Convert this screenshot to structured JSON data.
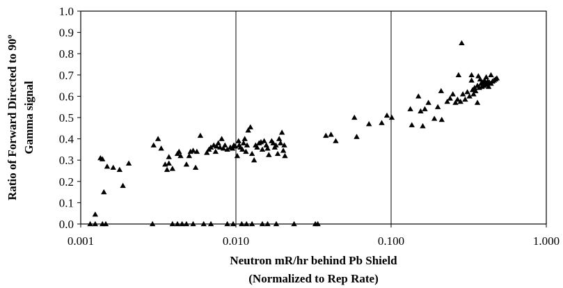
{
  "chart_data": {
    "type": "scatter",
    "title": "",
    "xlabel_lines": [
      "Neutron mR/hr behind Pb Shield",
      "(Normalized to Rep Rate)"
    ],
    "ylabel_lines": [
      "Ratio of Forward Directed to 90º",
      "Gamma signal"
    ],
    "x_scale": "log",
    "xlim": [
      0.001,
      1.0
    ],
    "ylim": [
      0.0,
      1.0
    ],
    "x_ticks": [
      "0.001",
      "0.010",
      "0.100",
      "1.000"
    ],
    "y_ticks": [
      "0.0",
      "0.1",
      "0.2",
      "0.3",
      "0.4",
      "0.5",
      "0.6",
      "0.7",
      "0.8",
      "0.9",
      "1.0"
    ],
    "grid": "vertical at x decades",
    "legend": "none",
    "marker": "triangle",
    "marker_color": "#000000",
    "series": [
      {
        "points": [
          [
            0.00115,
            0.0
          ],
          [
            0.00124,
            0.0
          ],
          [
            0.00138,
            0.0
          ],
          [
            0.00145,
            0.0
          ],
          [
            0.00124,
            0.045
          ],
          [
            0.00141,
            0.15
          ],
          [
            0.00187,
            0.18
          ],
          [
            0.00148,
            0.27
          ],
          [
            0.00162,
            0.265
          ],
          [
            0.00178,
            0.255
          ],
          [
            0.00204,
            0.285
          ],
          [
            0.00134,
            0.31
          ],
          [
            0.00138,
            0.305
          ],
          [
            0.0029,
            0.0
          ],
          [
            0.0039,
            0.0
          ],
          [
            0.0042,
            0.0
          ],
          [
            0.0045,
            0.0
          ],
          [
            0.0048,
            0.0
          ],
          [
            0.0053,
            0.0
          ],
          [
            0.0062,
            0.0
          ],
          [
            0.0069,
            0.0
          ],
          [
            0.0088,
            0.0
          ],
          [
            0.0096,
            0.0
          ],
          [
            0.0109,
            0.0
          ],
          [
            0.0117,
            0.0
          ],
          [
            0.0127,
            0.0
          ],
          [
            0.0148,
            0.0
          ],
          [
            0.016,
            0.0
          ],
          [
            0.0182,
            0.0
          ],
          [
            0.0237,
            0.0
          ],
          [
            0.0325,
            0.0
          ],
          [
            0.0337,
            0.0
          ],
          [
            0.00295,
            0.37
          ],
          [
            0.00315,
            0.4
          ],
          [
            0.0033,
            0.355
          ],
          [
            0.0035,
            0.28
          ],
          [
            0.0036,
            0.255
          ],
          [
            0.0037,
            0.285
          ],
          [
            0.0037,
            0.315
          ],
          [
            0.0039,
            0.26
          ],
          [
            0.0042,
            0.33
          ],
          [
            0.0043,
            0.34
          ],
          [
            0.0044,
            0.32
          ],
          [
            0.0048,
            0.28
          ],
          [
            0.005,
            0.32
          ],
          [
            0.0051,
            0.34
          ],
          [
            0.0053,
            0.345
          ],
          [
            0.0055,
            0.265
          ],
          [
            0.0056,
            0.34
          ],
          [
            0.0059,
            0.415
          ],
          [
            0.0065,
            0.335
          ],
          [
            0.0067,
            0.35
          ],
          [
            0.0069,
            0.36
          ],
          [
            0.0072,
            0.37
          ],
          [
            0.0074,
            0.34
          ],
          [
            0.0075,
            0.365
          ],
          [
            0.0077,
            0.38
          ],
          [
            0.0079,
            0.36
          ],
          [
            0.0081,
            0.4
          ],
          [
            0.0083,
            0.355
          ],
          [
            0.0085,
            0.37
          ],
          [
            0.0088,
            0.35
          ],
          [
            0.0092,
            0.36
          ],
          [
            0.0095,
            0.355
          ],
          [
            0.0097,
            0.37
          ],
          [
            0.0099,
            0.365
          ],
          [
            0.0102,
            0.32
          ],
          [
            0.0104,
            0.39
          ],
          [
            0.0105,
            0.37
          ],
          [
            0.0107,
            0.36
          ],
          [
            0.011,
            0.35
          ],
          [
            0.0112,
            0.38
          ],
          [
            0.0114,
            0.4
          ],
          [
            0.0116,
            0.34
          ],
          [
            0.0118,
            0.37
          ],
          [
            0.012,
            0.44
          ],
          [
            0.0124,
            0.455
          ],
          [
            0.0127,
            0.33
          ],
          [
            0.0131,
            0.3
          ],
          [
            0.0134,
            0.37
          ],
          [
            0.0137,
            0.36
          ],
          [
            0.0141,
            0.38
          ],
          [
            0.0145,
            0.385
          ],
          [
            0.0148,
            0.35
          ],
          [
            0.0152,
            0.39
          ],
          [
            0.0157,
            0.37
          ],
          [
            0.016,
            0.355
          ],
          [
            0.0163,
            0.325
          ],
          [
            0.017,
            0.39
          ],
          [
            0.0174,
            0.38
          ],
          [
            0.0178,
            0.36
          ],
          [
            0.0181,
            0.37
          ],
          [
            0.0186,
            0.33
          ],
          [
            0.019,
            0.4
          ],
          [
            0.0194,
            0.38
          ],
          [
            0.0198,
            0.43
          ],
          [
            0.0202,
            0.345
          ],
          [
            0.0205,
            0.37
          ],
          [
            0.0207,
            0.32
          ],
          [
            0.038,
            0.415
          ],
          [
            0.041,
            0.42
          ],
          [
            0.044,
            0.39
          ],
          [
            0.058,
            0.5
          ],
          [
            0.06,
            0.41
          ],
          [
            0.072,
            0.47
          ],
          [
            0.087,
            0.475
          ],
          [
            0.094,
            0.51
          ],
          [
            0.101,
            0.5
          ],
          [
            0.133,
            0.54
          ],
          [
            0.136,
            0.465
          ],
          [
            0.15,
            0.6
          ],
          [
            0.155,
            0.53
          ],
          [
            0.16,
            0.46
          ],
          [
            0.165,
            0.54
          ],
          [
            0.174,
            0.57
          ],
          [
            0.19,
            0.495
          ],
          [
            0.2,
            0.55
          ],
          [
            0.21,
            0.625
          ],
          [
            0.212,
            0.49
          ],
          [
            0.23,
            0.575
          ],
          [
            0.24,
            0.59
          ],
          [
            0.25,
            0.61
          ],
          [
            0.26,
            0.57
          ],
          [
            0.268,
            0.585
          ],
          [
            0.272,
            0.7
          ],
          [
            0.28,
            0.575
          ],
          [
            0.285,
            0.85
          ],
          [
            0.29,
            0.61
          ],
          [
            0.3,
            0.585
          ],
          [
            0.31,
            0.62
          ],
          [
            0.32,
            0.6
          ],
          [
            0.33,
            0.7
          ],
          [
            0.335,
            0.63
          ],
          [
            0.34,
            0.61
          ],
          [
            0.345,
            0.64
          ],
          [
            0.35,
            0.625
          ],
          [
            0.36,
            0.65
          ],
          [
            0.37,
            0.64
          ],
          [
            0.375,
            0.68
          ],
          [
            0.38,
            0.66
          ],
          [
            0.385,
            0.645
          ],
          [
            0.39,
            0.665
          ],
          [
            0.395,
            0.65
          ],
          [
            0.4,
            0.675
          ],
          [
            0.405,
            0.66
          ],
          [
            0.41,
            0.69
          ],
          [
            0.415,
            0.655
          ],
          [
            0.42,
            0.67
          ],
          [
            0.425,
            0.645
          ],
          [
            0.43,
            0.665
          ],
          [
            0.44,
            0.66
          ],
          [
            0.45,
            0.67
          ],
          [
            0.46,
            0.675
          ],
          [
            0.47,
            0.68
          ],
          [
            0.48,
            0.685
          ],
          [
            0.36,
            0.57
          ],
          [
            0.33,
            0.675
          ],
          [
            0.365,
            0.695
          ],
          [
            0.44,
            0.7
          ]
        ]
      }
    ]
  }
}
